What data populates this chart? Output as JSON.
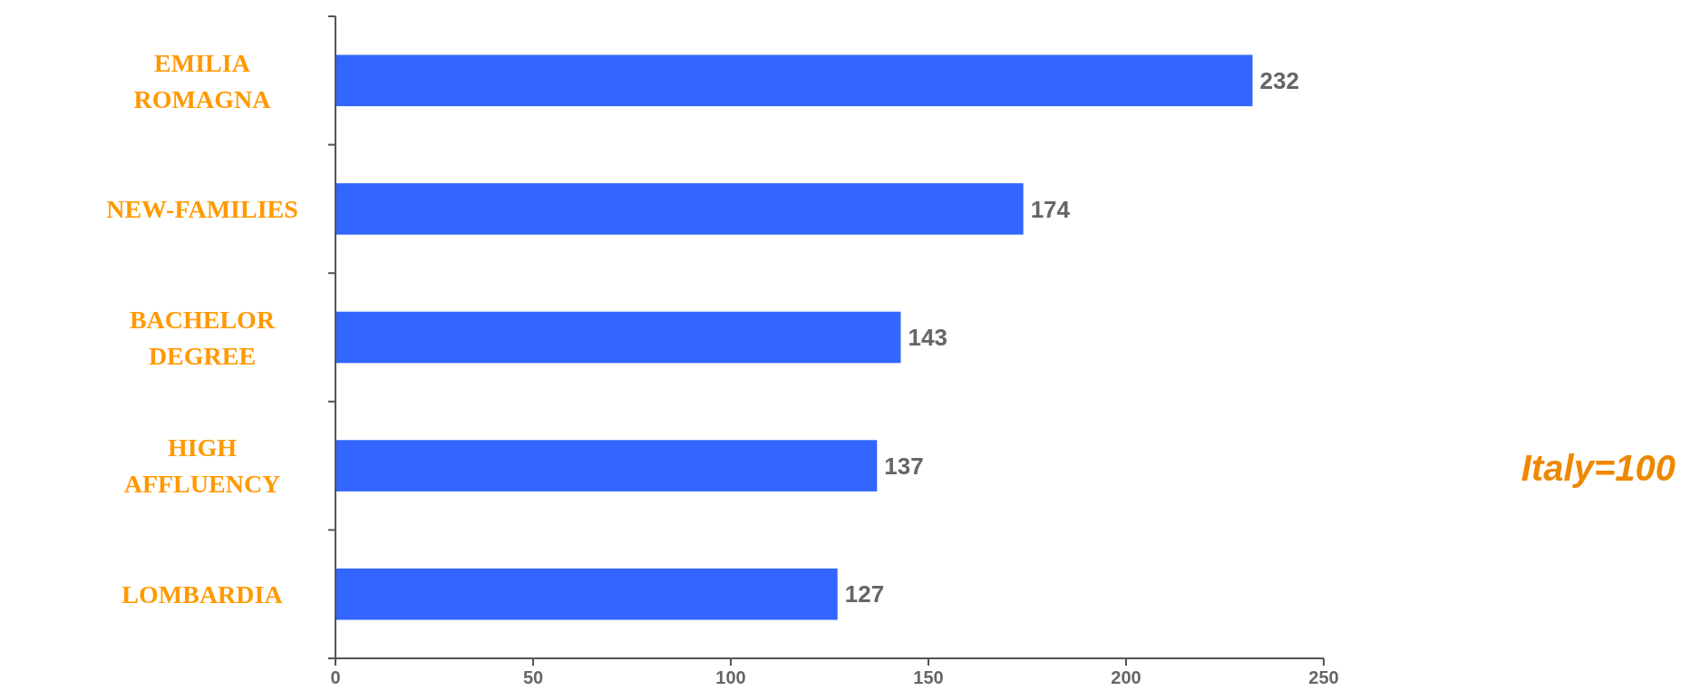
{
  "chart_data": {
    "type": "bar",
    "orientation": "horizontal",
    "categories": [
      "EMILIA ROMAGNA",
      "NEW-FAMILIES",
      "BACHELOR DEGREE",
      "HIGH AFFLUENCY",
      "LOMBARDIA"
    ],
    "values": [
      232,
      174,
      143,
      137,
      127
    ],
    "color": "#3366ff",
    "xlim": [
      0,
      250
    ],
    "xticks": [
      0,
      50,
      100,
      150,
      200,
      250
    ],
    "data_labels": true,
    "annotations": [
      "Italy=100"
    ]
  }
}
